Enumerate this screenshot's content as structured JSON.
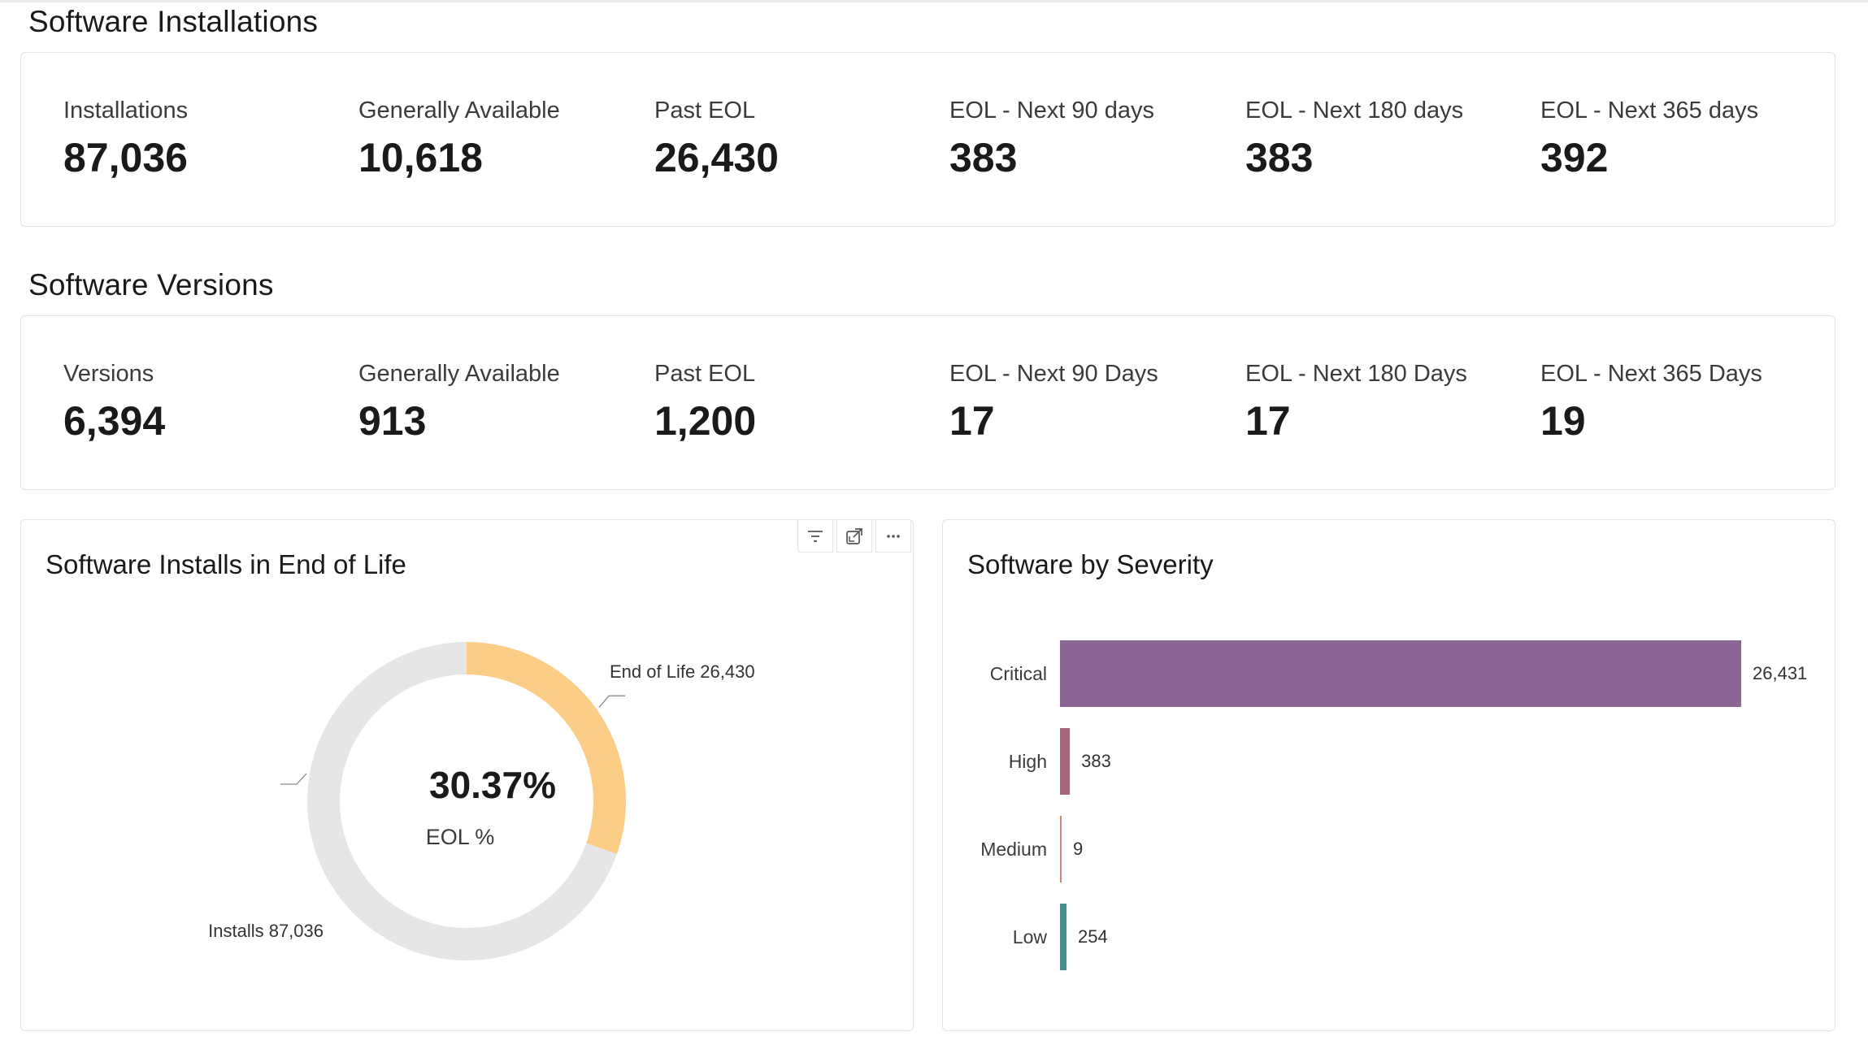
{
  "installations": {
    "title": "Software Installations",
    "kpis": [
      {
        "label": "Installations",
        "value": "87,036"
      },
      {
        "label": "Generally Available",
        "value": "10,618"
      },
      {
        "label": "Past EOL",
        "value": "26,430"
      },
      {
        "label": "EOL - Next 90 days",
        "value": "383"
      },
      {
        "label": "EOL - Next 180 days",
        "value": "383"
      },
      {
        "label": "EOL - Next 365 days",
        "value": "392"
      }
    ]
  },
  "versions": {
    "title": "Software Versions",
    "kpis": [
      {
        "label": "Versions",
        "value": "6,394"
      },
      {
        "label": "Generally Available",
        "value": "913"
      },
      {
        "label": "Past EOL",
        "value": "1,200"
      },
      {
        "label": "EOL - Next 90 Days",
        "value": "17"
      },
      {
        "label": "EOL - Next 180 Days",
        "value": "17"
      },
      {
        "label": "EOL - Next 365 Days",
        "value": "19"
      }
    ]
  },
  "eol_panel": {
    "title": "Software Installs in End of Life",
    "center_value": "30.37%",
    "center_label": "EOL %",
    "toolbar": [
      "filter-icon",
      "focus-mode-icon",
      "more-options-icon"
    ]
  },
  "severity_panel": {
    "title": "Software by Severity"
  },
  "chart_data": [
    {
      "type": "pie",
      "title": "Software Installs in End of Life",
      "slices": [
        {
          "name": "End of Life",
          "value": 26430,
          "label": "End of Life 26,430",
          "color": "#FCCD86"
        },
        {
          "name": "Installs",
          "value": 87036,
          "label": "Installs 87,036",
          "color": "#E6E6E6"
        }
      ],
      "center_text": "30.37%",
      "center_subtext": "EOL %"
    },
    {
      "type": "bar",
      "orientation": "horizontal",
      "title": "Software by Severity",
      "categories": [
        "Critical",
        "High",
        "Medium",
        "Low"
      ],
      "values": [
        26431,
        383,
        9,
        254
      ],
      "value_labels": [
        "26,431",
        "383",
        "9",
        "254"
      ],
      "colors": [
        "#8A6596",
        "#A4677F",
        "#D4826E",
        "#458D8F"
      ],
      "xlim": [
        0,
        26431
      ]
    }
  ]
}
